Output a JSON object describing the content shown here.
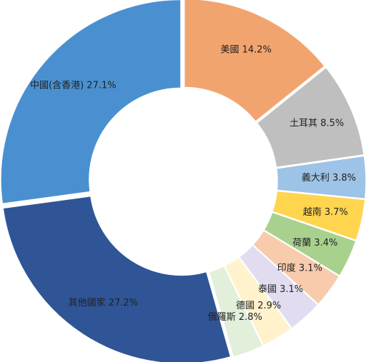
{
  "chart_data": {
    "type": "pie",
    "donut": true,
    "start_angle_deg": 0,
    "direction": "clockwise",
    "slices": [
      {
        "name": "美國",
        "value": 14.2,
        "label": "美國 14.2%",
        "color": "#F2A46F"
      },
      {
        "name": "土耳其",
        "value": 8.5,
        "label": "土耳其 8.5%",
        "color": "#BFBFBF"
      },
      {
        "name": "義大利",
        "value": 3.8,
        "label": "義大利 3.8%",
        "color": "#9DC3E6"
      },
      {
        "name": "越南",
        "value": 3.7,
        "label": "越南 3.7%",
        "color": "#FFD54F"
      },
      {
        "name": "荷蘭",
        "value": 3.4,
        "label": "荷蘭 3.4%",
        "color": "#A9D18E"
      },
      {
        "name": "印度",
        "value": 3.1,
        "label": "印度 3.1%",
        "color": "#F8CBAD"
      },
      {
        "name": "泰國",
        "value": 3.1,
        "label": "泰國 3.1%",
        "color": "#E1DCF0"
      },
      {
        "name": "德國",
        "value": 2.9,
        "label": "德國 2.9%",
        "color": "#FFF2CC"
      },
      {
        "name": "俄羅斯",
        "value": 2.8,
        "label": "俄羅斯 2.8%",
        "color": "#E2EFDA"
      },
      {
        "name": "其他國家",
        "value": 27.2,
        "label": "其他國家 27.2%",
        "color": "#2F5597"
      },
      {
        "name": "中國(含香港)",
        "value": 27.1,
        "label": "中國(含香港) 27.1%",
        "color": "#4A90D0"
      }
    ]
  }
}
